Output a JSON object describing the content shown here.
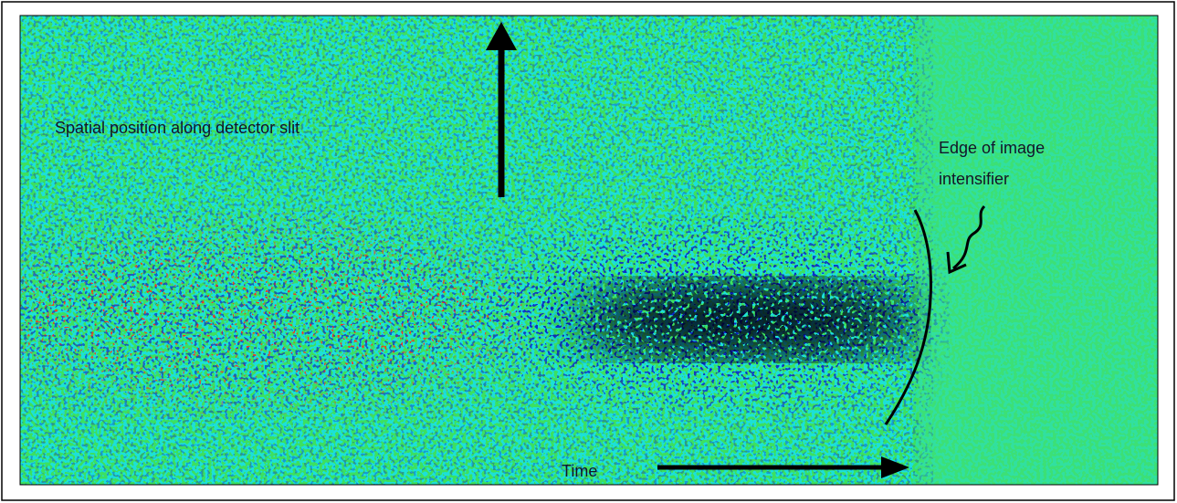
{
  "annotations": {
    "spatial": "Spatial position along detector slit",
    "edge": [
      "Edge of image",
      "intensifier"
    ],
    "time": "Time"
  }
}
